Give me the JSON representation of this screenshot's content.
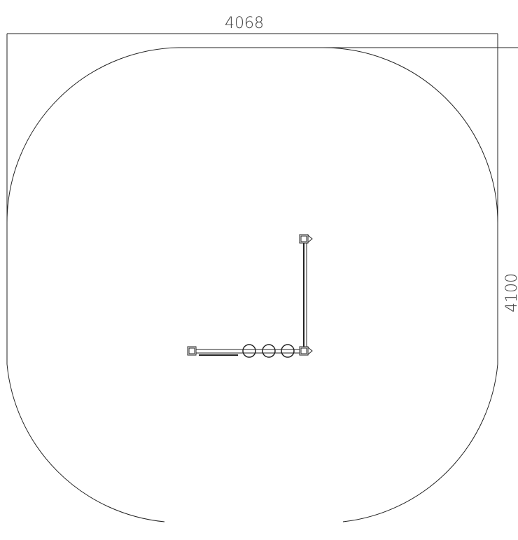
{
  "dimensions": {
    "width": "4068",
    "height": "4100"
  }
}
